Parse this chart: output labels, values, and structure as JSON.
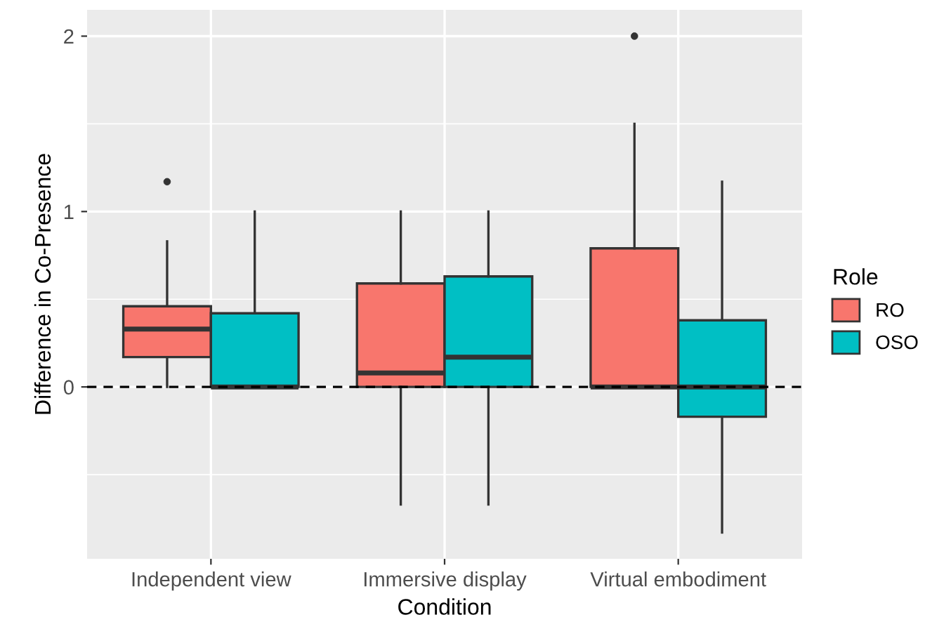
{
  "chart_data": {
    "type": "box",
    "categories": [
      "Independent view",
      "Immersive display",
      "Virtual embodiment"
    ],
    "series": [
      {
        "name": "RO",
        "color": "#f8766d",
        "boxes": [
          {
            "low": 0,
            "q1": 0.17,
            "median": 0.33,
            "q3": 0.46,
            "high": 0.83,
            "outliers": [
              1.17
            ]
          },
          {
            "low": -0.67,
            "q1": 0,
            "median": 0.08,
            "q3": 0.59,
            "high": 1.0
          },
          {
            "low": 0,
            "q1": 0,
            "median": 0,
            "q3": 0.79,
            "high": 1.5,
            "outliers": [
              2.0
            ]
          }
        ]
      },
      {
        "name": "OSO",
        "color": "#00bfc4",
        "boxes": [
          {
            "low": 0,
            "q1": 0,
            "median": 0,
            "q3": 0.42,
            "high": 1.0
          },
          {
            "low": -0.67,
            "q1": 0,
            "median": 0.17,
            "q3": 0.63,
            "high": 1.0
          },
          {
            "low": -0.83,
            "q1": -0.17,
            "median": 0,
            "q3": 0.38,
            "high": 1.17
          }
        ]
      }
    ],
    "xlabel": "Condition",
    "ylabel": "Difference in Co-Presence",
    "legend_title": "Role",
    "ylim": [
      -0.98,
      2.15
    ],
    "yticks": [
      0,
      1,
      2
    ],
    "grid": true,
    "legend": "right",
    "ref_lines": [
      {
        "axis": "y",
        "value": 0,
        "color": "#000000",
        "line_style": "dashed"
      }
    ]
  }
}
